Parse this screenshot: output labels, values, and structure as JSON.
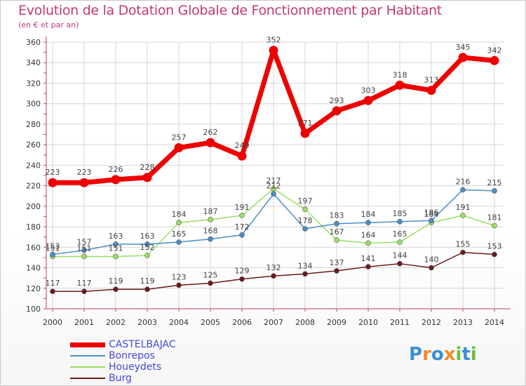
{
  "chart_data": {
    "type": "line",
    "title": "Evolution de la Dotation Globale de Fonctionnement par Habitant",
    "subtitle": "(en € et par an)",
    "x": [
      "2000",
      "2001",
      "2002",
      "2003",
      "2004",
      "2005",
      "2006",
      "2007",
      "2008",
      "2009",
      "2010",
      "2011",
      "2012",
      "2013",
      "2014"
    ],
    "ylim": [
      100,
      360
    ],
    "yticks": [
      100,
      120,
      140,
      160,
      180,
      200,
      220,
      240,
      260,
      280,
      300,
      320,
      340,
      360
    ],
    "grid": true,
    "legend_position": "bottom-left",
    "series": [
      {
        "name": "Burg",
        "color": "#6b1a1a",
        "values": [
          117,
          117,
          119,
          119,
          123,
          125,
          129,
          132,
          134,
          137,
          141,
          144,
          140,
          155,
          153
        ]
      },
      {
        "name": "Houeydets",
        "color": "#99e066",
        "values": [
          151,
          151,
          151,
          152,
          184,
          187,
          191,
          217,
          197,
          167,
          164,
          165,
          184,
          191,
          181
        ]
      },
      {
        "name": "Bonrepos",
        "color": "#4a8ec8",
        "values": [
          153,
          157,
          163,
          163,
          165,
          168,
          172,
          212,
          178,
          183,
          184,
          185,
          186,
          216,
          215
        ]
      },
      {
        "name": "CASTELBAJAC",
        "color": "#ee0000",
        "values": [
          223,
          223,
          226,
          228,
          257,
          262,
          249,
          352,
          271,
          293,
          303,
          318,
          313,
          345,
          342
        ]
      }
    ],
    "legend_order": [
      "CASTELBAJAC",
      "Bonrepos",
      "Houeydets",
      "Burg"
    ]
  },
  "logo": {
    "text": "Proxiti"
  }
}
